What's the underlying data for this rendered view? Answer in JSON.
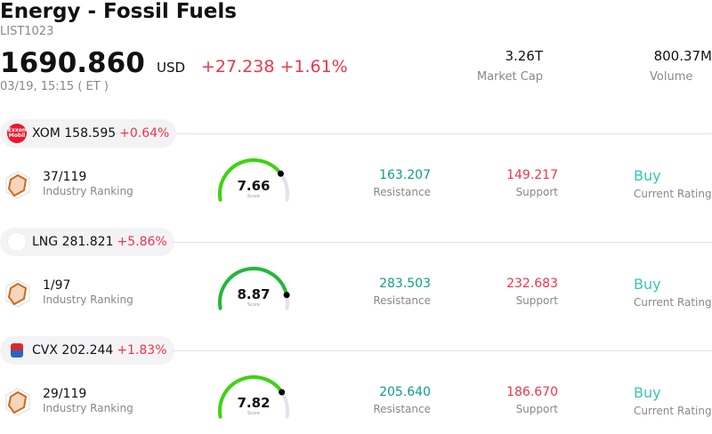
{
  "header": {
    "title": "Energy - Fossil Fuels",
    "code": "LIST1023",
    "price": "1690.860",
    "currency": "USD",
    "change": "+27.238 +1.61%",
    "time": "03/19, 15:15  ( ET )"
  },
  "stats": {
    "market_cap": "3.26T",
    "market_cap_label": "Market Cap",
    "volume": "800.37M",
    "volume_label": "Volume"
  },
  "stocks": [
    {
      "ticker": "XOM",
      "price": "158.595",
      "change": "+0.64%",
      "logo": "Exxon Mobil",
      "rank": "37/119",
      "rank_label": "Industry Ranking",
      "score": 7.66,
      "score_text": "7.66",
      "score_label": "Score",
      "resistance": "163.207",
      "resistance_label": "Resistance",
      "support": "149.217",
      "support_label": "Support",
      "rating": "Buy",
      "rating_label": "Current Rating",
      "gauge_color": "#3ed40e"
    },
    {
      "ticker": "LNG",
      "price": "281.821",
      "change": "+5.86%",
      "logo": "",
      "rank": "1/97",
      "rank_label": "Industry Ranking",
      "score": 8.87,
      "score_text": "8.87",
      "score_label": "Score",
      "resistance": "283.503",
      "resistance_label": "Resistance",
      "support": "232.683",
      "support_label": "Support",
      "rating": "Buy",
      "rating_label": "Current Rating",
      "gauge_color": "#22b83a"
    },
    {
      "ticker": "CVX",
      "price": "202.244",
      "change": "+1.83%",
      "logo": "",
      "rank": "29/119",
      "rank_label": "Industry Ranking",
      "score": 7.82,
      "score_text": "7.82",
      "score_label": "Score",
      "resistance": "205.640",
      "resistance_label": "Resistance",
      "support": "186.670",
      "support_label": "Support",
      "rating": "Buy",
      "rating_label": "Current Rating",
      "gauge_color": "#3ed40e"
    }
  ]
}
